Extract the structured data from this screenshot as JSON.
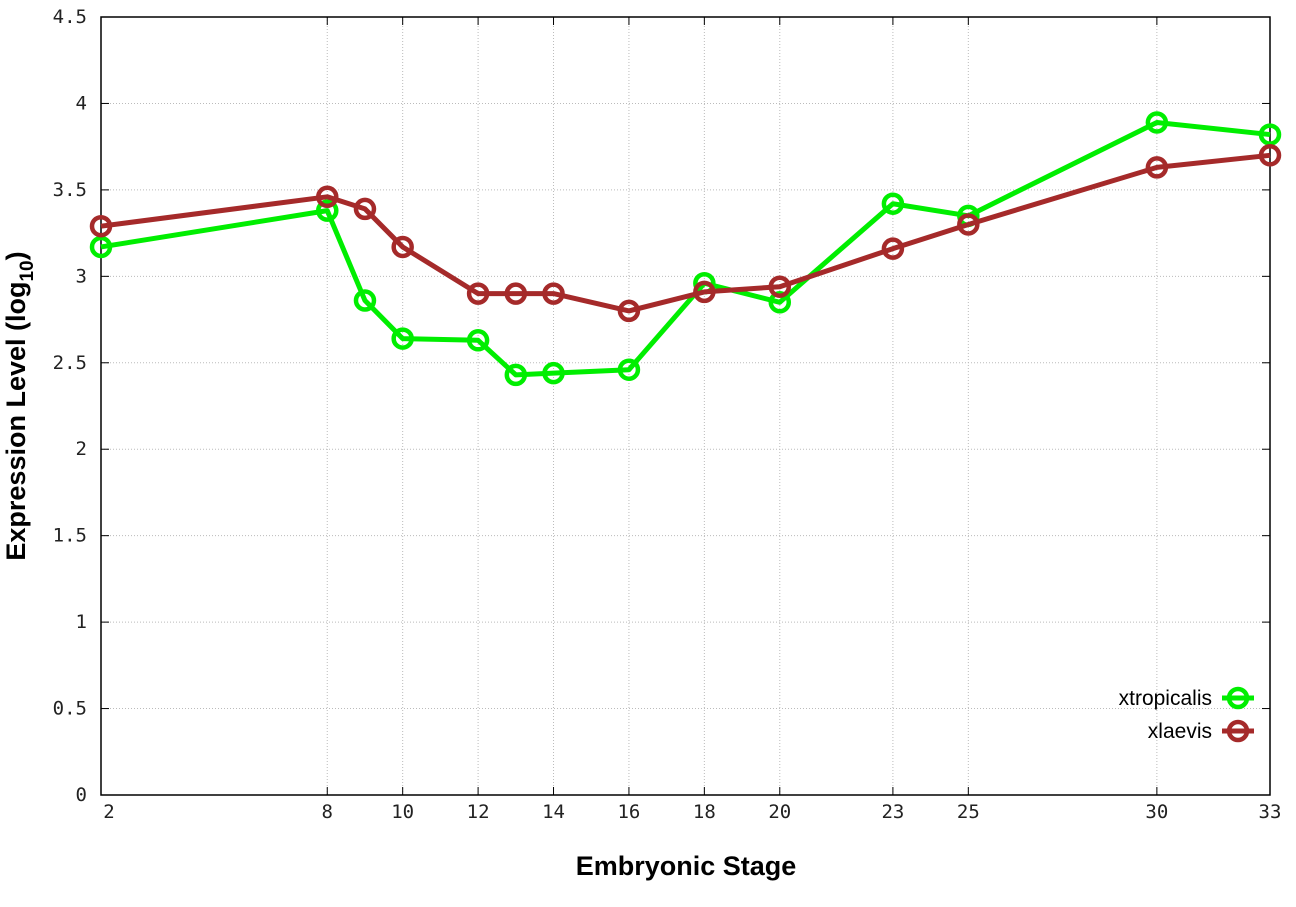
{
  "chart_data": {
    "type": "line",
    "title": "",
    "xlabel": "Embryonic Stage",
    "ylabel_main": "Expression Level (log",
    "ylabel_sub": "10",
    "ylabel_close": ")",
    "xlim": [
      2,
      33
    ],
    "ylim": [
      0,
      4.5
    ],
    "x_ticks": [
      2,
      8,
      10,
      12,
      14,
      16,
      18,
      20,
      23,
      25,
      30,
      33
    ],
    "y_ticks": [
      "0",
      "0.5",
      "1",
      "1.5",
      "2",
      "2.5",
      "3",
      "3.5",
      "4",
      "4.5"
    ],
    "grid": true,
    "legend_position": "bottom-right",
    "x": [
      2,
      8,
      9,
      10,
      12,
      13,
      14,
      16,
      18,
      20,
      23,
      25,
      30,
      33
    ],
    "series": [
      {
        "name": "xtropicalis",
        "color": "#00ee00",
        "values": [
          3.17,
          3.38,
          2.86,
          2.64,
          2.63,
          2.43,
          2.44,
          2.46,
          2.96,
          2.85,
          3.42,
          3.35,
          3.89,
          3.82
        ]
      },
      {
        "name": "xlaevis",
        "color": "#a52a2a",
        "values": [
          3.29,
          3.46,
          3.39,
          3.17,
          2.9,
          2.9,
          2.9,
          2.8,
          2.91,
          2.94,
          3.16,
          3.3,
          3.63,
          3.7
        ]
      }
    ],
    "marker": "open-circle"
  }
}
